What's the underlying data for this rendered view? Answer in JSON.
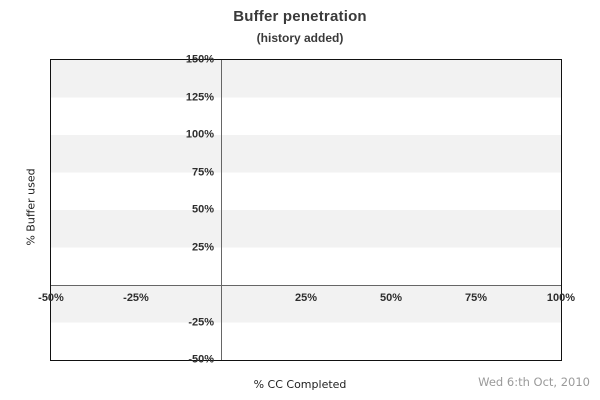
{
  "header": {
    "title": "Buffer penetration",
    "subtitle": "(history added)"
  },
  "axes": {
    "x_label": "% CC Completed",
    "y_label": "% Buffer used"
  },
  "footer": {
    "date": "Wed 6:th Oct, 2010"
  },
  "colors": {
    "background": "#ffffff",
    "band": "#f2f2f2",
    "plot_border": "#111111",
    "axis_line": "#666666",
    "text": "#3a3a3a",
    "tick_text": "#2e2e2e",
    "date_text": "#9a9a9a"
  },
  "chart_data": {
    "type": "line",
    "title": "Buffer penetration",
    "subtitle": "(history added)",
    "xlabel": "% CC Completed",
    "ylabel": "% Buffer used",
    "xlim": [
      -50,
      100
    ],
    "ylim": [
      -50,
      150
    ],
    "x_tick_values": [
      -50,
      -25,
      25,
      50,
      75,
      100
    ],
    "x_tick_labels": [
      "-50%",
      "-25%",
      "25%",
      "50%",
      "75%",
      "100%"
    ],
    "y_tick_values": [
      150,
      125,
      100,
      75,
      50,
      25,
      -25,
      -50
    ],
    "y_tick_labels": [
      "150%",
      "125%",
      "100%",
      "75%",
      "50%",
      "25%",
      "-25%",
      "-50%"
    ],
    "axes_cross_at": [
      0,
      0
    ],
    "series": [],
    "grid": {
      "vertical_gridlines": false,
      "horizontal_bands": "alternating gray/white bands, 25% tall, gray starting at 150%-125%",
      "band_color": "#f2f2f2"
    },
    "legend_visible": false,
    "annotations": {
      "date_stamp": "Wed 6:th Oct, 2010"
    }
  }
}
